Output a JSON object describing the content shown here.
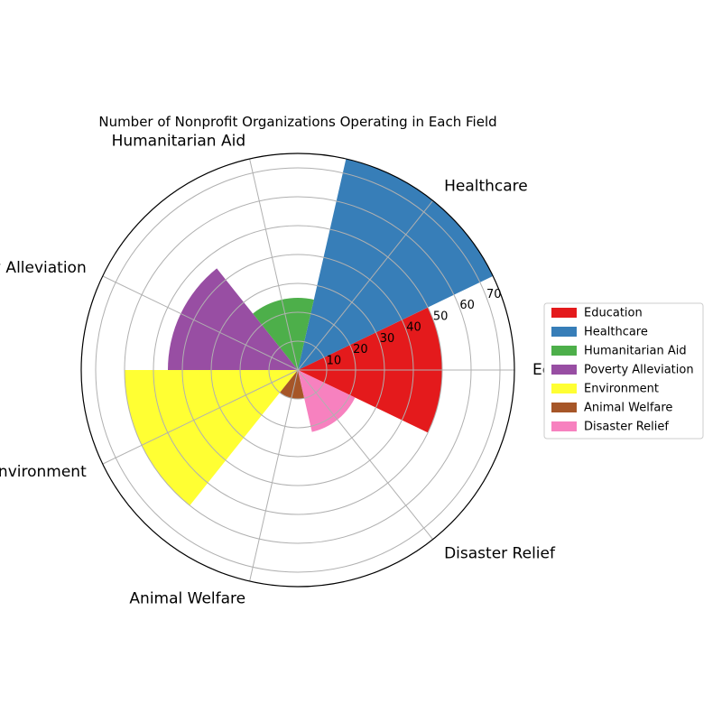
{
  "chart_data": {
    "type": "bar",
    "subtype": "polar",
    "title": "Number of Nonprofit Organizations Operating in Each Field",
    "categories": [
      "Education",
      "Healthcare",
      "Humanitarian Aid",
      "Poverty Alleviation",
      "Environment",
      "Animal Welfare",
      "Disaster Relief"
    ],
    "values": [
      50,
      75,
      25,
      45,
      60,
      10,
      22
    ],
    "colors": [
      "#e41a1c",
      "#377eb8",
      "#4daf4a",
      "#984ea3",
      "#ffff33",
      "#a65628",
      "#f781bf"
    ],
    "rlim": [
      0,
      75
    ],
    "rticks": [
      "10",
      "20",
      "30",
      "40",
      "50",
      "60",
      "70"
    ],
    "grid": true,
    "legend_position": "right",
    "legend": [
      "Education",
      "Healthcare",
      "Humanitarian Aid",
      "Poverty Alleviation",
      "Environment",
      "Animal Welfare",
      "Disaster Relief"
    ]
  }
}
